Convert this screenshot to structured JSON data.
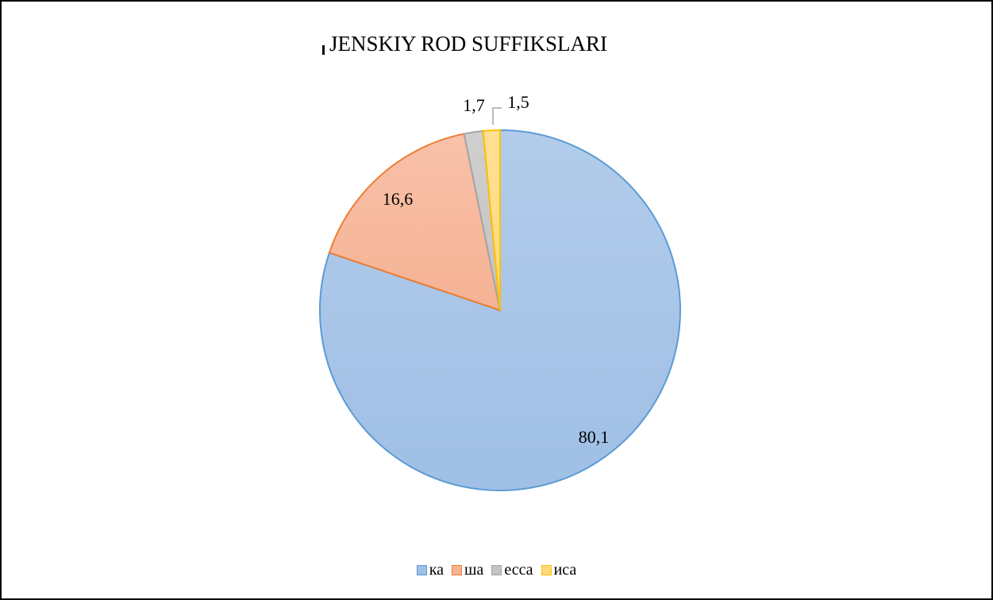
{
  "chart_data": {
    "type": "pie",
    "title": "JENSKIY ROD SUFFIKSLARI",
    "categories": [
      "ка",
      "ша",
      "есса",
      "иса"
    ],
    "values": [
      80.1,
      16.6,
      1.7,
      1.5
    ],
    "data_labels": [
      "80,1",
      "16,6",
      "1,7",
      "1,5"
    ],
    "colors": [
      "#9fbfe5",
      "#f6b294",
      "#c3c3c3",
      "#ffd97a"
    ],
    "border_colors": [
      "#5b9bd5",
      "#ed7d31",
      "#a5a5a5",
      "#ffc000"
    ],
    "legend": {
      "position": "bottom",
      "entries": [
        "ка",
        "ша",
        "есса",
        "иса"
      ]
    }
  }
}
